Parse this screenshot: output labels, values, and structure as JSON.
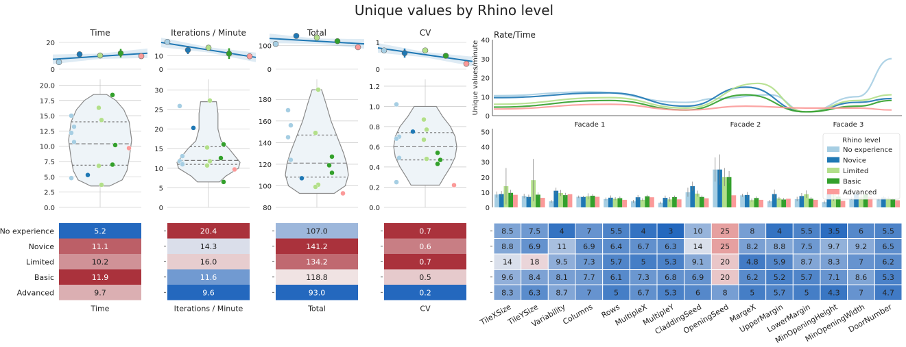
{
  "title": "Unique values by Rhino level",
  "levels": [
    "No experience",
    "Novice",
    "Limited",
    "Basic",
    "Advanced"
  ],
  "level_colors": [
    "#a6cee3",
    "#1f78b4",
    "#b2df8a",
    "#33a02c",
    "#fb9a99"
  ],
  "legend_title": "Rhino level",
  "chart_data": [
    {
      "type": "scatter",
      "panel": "trend",
      "title": "Time",
      "ylim": [
        0,
        22
      ],
      "yticks": [
        0,
        20
      ],
      "means": [
        5.2,
        11.1,
        10.2,
        11.9,
        9.7
      ],
      "errors": [
        null,
        1.6,
        1.8,
        3.2,
        null
      ]
    },
    {
      "type": "scatter",
      "panel": "trend",
      "title": "Iterations / Minute",
      "ylim": [
        0,
        22
      ],
      "yticks": [
        0,
        10
      ],
      "means": [
        20.4,
        14.3,
        16.0,
        11.6,
        9.6
      ],
      "errors": [
        null,
        3.0,
        2.2,
        4.0,
        null
      ]
    },
    {
      "type": "scatter",
      "panel": "trend",
      "title": "Total",
      "ylim": [
        0,
        125
      ],
      "yticks": [
        0,
        100
      ],
      "means": [
        107.0,
        141.2,
        134.2,
        118.8,
        93.0
      ],
      "errors": [
        null,
        9.0,
        13.0,
        3.0,
        null
      ]
    },
    {
      "type": "scatter",
      "panel": "trend",
      "title": "CV",
      "ylim": [
        0,
        1.1
      ],
      "yticks": [
        0,
        1
      ],
      "means": [
        0.7,
        0.6,
        0.7,
        0.5,
        0.2
      ],
      "errors": [
        null,
        0.17,
        0.07,
        0.03,
        null
      ]
    },
    {
      "type": "scatter",
      "panel": "violin",
      "ylim": [
        0,
        20.5
      ],
      "yticks": [
        "0.0",
        "2.5",
        "5.0",
        "7.5",
        "10.0",
        "12.5",
        "15.0",
        "17.5",
        "20.0"
      ],
      "quartiles": [
        6.9,
        10.4,
        14.0
      ],
      "profile": [
        [
          3.5,
          0.3
        ],
        [
          4.5,
          0.7
        ],
        [
          6,
          0.85
        ],
        [
          8,
          0.92
        ],
        [
          11,
          1.0
        ],
        [
          14,
          0.92
        ],
        [
          16,
          0.75
        ],
        [
          17.5,
          0.5
        ],
        [
          18.5,
          0.2
        ]
      ],
      "points": [
        [
          0,
          15.0
        ],
        [
          0,
          13.2
        ],
        [
          0,
          12.2
        ],
        [
          0,
          10.7
        ],
        [
          0,
          4.8
        ],
        [
          1,
          5.3
        ],
        [
          2,
          16.3
        ],
        [
          2,
          14.3
        ],
        [
          2,
          6.8
        ],
        [
          2,
          3.7
        ],
        [
          3,
          18.4
        ],
        [
          3,
          10.2
        ],
        [
          3,
          7.0
        ],
        [
          4,
          9.7
        ]
      ]
    },
    {
      "type": "scatter",
      "panel": "violin",
      "ylim": [
        0,
        32
      ],
      "yticks": [
        "0",
        "5",
        "10",
        "15",
        "20",
        "25",
        "30"
      ],
      "quartiles": [
        11.0,
        12.0,
        15.5
      ],
      "profile": [
        [
          6.5,
          0.35
        ],
        [
          8,
          0.55
        ],
        [
          10,
          0.95
        ],
        [
          11.5,
          1.0
        ],
        [
          13,
          0.85
        ],
        [
          15,
          0.65
        ],
        [
          17,
          0.4
        ],
        [
          20,
          0.3
        ],
        [
          24,
          0.3
        ],
        [
          27,
          0.25
        ]
      ],
      "points": [
        [
          0,
          25.9
        ],
        [
          0,
          13.1
        ],
        [
          0,
          11.8
        ],
        [
          0,
          11.2
        ],
        [
          1,
          20.3
        ],
        [
          2,
          27.3
        ],
        [
          2,
          15.3
        ],
        [
          2,
          11.8
        ],
        [
          2,
          10.7
        ],
        [
          3,
          16.1
        ],
        [
          3,
          12.6
        ],
        [
          3,
          6.5
        ],
        [
          4,
          9.7
        ],
        [
          0,
          11.0
        ]
      ]
    },
    {
      "type": "scatter",
      "panel": "violin",
      "ylim": [
        80,
        196
      ],
      "yticks": [
        "80",
        "100",
        "120",
        "140",
        "160",
        "180"
      ],
      "quartiles": [
        108.0,
        121.0,
        147.0
      ],
      "profile": [
        [
          93,
          0.55
        ],
        [
          100,
          0.9
        ],
        [
          110,
          1.0
        ],
        [
          120,
          0.95
        ],
        [
          130,
          0.85
        ],
        [
          145,
          0.65
        ],
        [
          160,
          0.45
        ],
        [
          175,
          0.3
        ],
        [
          189,
          0.15
        ]
      ],
      "points": [
        [
          0,
          170.0
        ],
        [
          0,
          156.0
        ],
        [
          0,
          145.0
        ],
        [
          0,
          124.0
        ],
        [
          1,
          107.0
        ],
        [
          2,
          189.0
        ],
        [
          2,
          149.0
        ],
        [
          2,
          101.0
        ],
        [
          2,
          99.0
        ],
        [
          3,
          127.0
        ],
        [
          3,
          119.0
        ],
        [
          3,
          112.0
        ],
        [
          4,
          93.0
        ]
      ]
    },
    {
      "type": "scatter",
      "panel": "violin",
      "ylim": [
        0,
        1.24
      ],
      "yticks": [
        "0.0",
        "0.2",
        "0.4",
        "0.6",
        "0.8",
        "1.0",
        "1.2"
      ],
      "quartiles": [
        0.47,
        0.6,
        0.74
      ],
      "profile": [
        [
          0.22,
          0.45
        ],
        [
          0.3,
          0.6
        ],
        [
          0.4,
          0.8
        ],
        [
          0.5,
          0.95
        ],
        [
          0.6,
          1.0
        ],
        [
          0.7,
          0.95
        ],
        [
          0.8,
          0.8
        ],
        [
          0.9,
          0.55
        ],
        [
          1.0,
          0.35
        ]
      ],
      "points": [
        [
          0,
          1.02
        ],
        [
          0,
          0.7
        ],
        [
          0,
          0.68
        ],
        [
          0,
          0.49
        ],
        [
          0,
          0.25
        ],
        [
          1,
          0.75
        ],
        [
          2,
          0.87
        ],
        [
          2,
          0.77
        ],
        [
          2,
          0.67
        ],
        [
          2,
          0.48
        ],
        [
          3,
          0.54
        ],
        [
          3,
          0.47
        ],
        [
          3,
          0.43
        ],
        [
          4,
          0.22
        ]
      ]
    },
    {
      "type": "heatmap",
      "panel": "single",
      "xlabel": "Time",
      "cells": [
        "5.2",
        "11.1",
        "10.2",
        "11.9",
        "9.7"
      ],
      "values": [
        5.2,
        11.1,
        10.2,
        11.9,
        9.7
      ],
      "range": [
        5.2,
        11.9
      ]
    },
    {
      "type": "heatmap",
      "panel": "single",
      "xlabel": "Iterations / Minute",
      "cells": [
        "20.4",
        "14.3",
        "16.0",
        "11.6",
        "9.6"
      ],
      "values": [
        20.4,
        14.3,
        16.0,
        11.6,
        9.6
      ],
      "range": [
        9.6,
        20.4
      ]
    },
    {
      "type": "heatmap",
      "panel": "single",
      "xlabel": "Total",
      "cells": [
        "107.0",
        "141.2",
        "134.2",
        "118.8",
        "93.0"
      ],
      "values": [
        107.0,
        141.2,
        134.2,
        118.8,
        93.0
      ],
      "range": [
        93.0,
        141.2
      ]
    },
    {
      "type": "heatmap",
      "panel": "single",
      "xlabel": "CV",
      "cells": [
        "0.7",
        "0.6",
        "0.7",
        "0.5",
        "0.2"
      ],
      "values": [
        0.7,
        0.6,
        0.7,
        0.5,
        0.2
      ],
      "range": [
        0.2,
        0.7
      ]
    },
    {
      "type": "line",
      "panel": "rate",
      "title": "Rate/Time",
      "ylabel": "Unique values/minute",
      "ylim": [
        0,
        40
      ],
      "yticks": [
        "0",
        "10",
        "20",
        "30",
        "40"
      ],
      "x": [
        "Facade 1",
        "Facade 2",
        "Facade 3"
      ],
      "series": [
        {
          "name": "No experience",
          "points": [
            [
              0,
              10.5
            ],
            [
              0.5,
              12.5
            ],
            [
              1,
              7
            ],
            [
              1.25,
              9
            ],
            [
              1.7,
              11
            ],
            [
              2,
              2
            ],
            [
              2.3,
              10
            ],
            [
              2.5,
              30
            ]
          ]
        },
        {
          "name": "Novice",
          "points": [
            [
              0,
              9.5
            ],
            [
              0.6,
              12
            ],
            [
              1,
              5
            ],
            [
              1.5,
              15
            ],
            [
              2,
              2
            ],
            [
              2.3,
              7
            ],
            [
              2.5,
              9
            ]
          ]
        },
        {
          "name": "Limited",
          "points": [
            [
              0,
              6
            ],
            [
              0.6,
              9.5
            ],
            [
              1,
              4
            ],
            [
              1.6,
              17
            ],
            [
              2,
              2
            ],
            [
              2.3,
              8
            ],
            [
              2.5,
              11
            ]
          ]
        },
        {
          "name": "Basic",
          "points": [
            [
              0,
              4.5
            ],
            [
              0.6,
              8
            ],
            [
              1,
              3
            ],
            [
              1.5,
              11
            ],
            [
              2,
              2
            ],
            [
              2.3,
              5
            ],
            [
              2.5,
              8
            ]
          ]
        },
        {
          "name": "Advanced",
          "points": [
            [
              0,
              3.5
            ],
            [
              0.6,
              6
            ],
            [
              1,
              3
            ],
            [
              1.5,
              5
            ],
            [
              2,
              4
            ],
            [
              2.3,
              4
            ],
            [
              2.5,
              3
            ]
          ]
        }
      ]
    },
    {
      "type": "bar",
      "panel": "params",
      "ylim": [
        0,
        52
      ],
      "yticks": [
        "0",
        "10",
        "20",
        "30",
        "40",
        "50"
      ],
      "categories": [
        "TileXSize",
        "TileYSize",
        "Variability",
        "Columns",
        "Rows",
        "MultipleX",
        "MultipleY",
        "CladdingSeed",
        "OpeningSeed",
        "MargeX",
        "UpperMargin",
        "LowerMargin",
        "MinOpeningHeight",
        "MinOpeningWidth",
        "DoorNumber"
      ],
      "series": [
        {
          "name": "No experience",
          "values": [
            8.5,
            7.5,
            4,
            7,
            5.5,
            4,
            3,
            10,
            25,
            8,
            4,
            5.5,
            3.5,
            6,
            5.5
          ],
          "err": [
            2,
            1.5,
            1,
            0.8,
            1,
            1,
            0.8,
            3,
            8,
            1,
            1,
            1.5,
            1,
            1,
            1
          ]
        },
        {
          "name": "Novice",
          "values": [
            8.8,
            6.9,
            11,
            6.9,
            6.4,
            6.7,
            6.3,
            14,
            25,
            8.2,
            8.8,
            7.5,
            9.7,
            9.2,
            6.5
          ],
          "err": [
            2,
            1.5,
            2,
            0.8,
            1.5,
            1.5,
            1.5,
            3,
            10,
            2,
            3,
            2,
            3,
            2,
            1
          ]
        },
        {
          "name": "Limited",
          "values": [
            14,
            18,
            9.5,
            7.3,
            5.7,
            5,
            5.3,
            9.1,
            20,
            4.8,
            5.9,
            8.7,
            8.3,
            7,
            6.2
          ],
          "err": [
            12,
            14,
            2,
            2,
            1,
            1,
            1.5,
            2,
            6,
            1,
            1,
            2.5,
            4,
            2,
            1
          ]
        },
        {
          "name": "Basic",
          "values": [
            9.6,
            8.4,
            8.1,
            7.7,
            6.1,
            7.3,
            6.8,
            6.9,
            20,
            6.2,
            5.2,
            5.7,
            7.1,
            8.6,
            5.3
          ],
          "err": [
            2,
            1.5,
            1.5,
            1,
            1,
            1,
            1,
            1,
            4,
            1,
            1,
            1,
            1.5,
            1.5,
            1
          ]
        },
        {
          "name": "Advanced",
          "values": [
            8.3,
            6.3,
            8.7,
            7,
            5,
            6.7,
            5.3,
            6,
            8,
            5,
            5.7,
            5,
            4.3,
            7,
            4.7
          ],
          "err": [
            0,
            0,
            0,
            0,
            0,
            0,
            0,
            0,
            0,
            0,
            0,
            0,
            0,
            0,
            0
          ]
        }
      ]
    },
    {
      "type": "heatmap",
      "panel": "grid",
      "xlabels": [
        "TileXSize",
        "TileYSize",
        "Variability",
        "Columns",
        "Rows",
        "MultipleX",
        "MultipleY",
        "CladdingSeed",
        "OpeningSeed",
        "MargeX",
        "UpperMargin",
        "LowerMargin",
        "MinOpeningHeight",
        "MinOpeningWidth",
        "DoorNumber"
      ],
      "cells": [
        [
          "8.5",
          "7.5",
          "4",
          "7",
          "5.5",
          "4",
          "3",
          "10",
          "25",
          "8",
          "4",
          "5.5",
          "3.5",
          "6",
          "5.5"
        ],
        [
          "8.8",
          "6.9",
          "11",
          "6.9",
          "6.4",
          "6.7",
          "6.3",
          "14",
          "25",
          "8.2",
          "8.8",
          "7.5",
          "9.7",
          "9.2",
          "6.5"
        ],
        [
          "14",
          "18",
          "9.5",
          "7.3",
          "5.7",
          "5",
          "5.3",
          "9.1",
          "20",
          "4.8",
          "5.9",
          "8.7",
          "8.3",
          "7",
          "6.2"
        ],
        [
          "9.6",
          "8.4",
          "8.1",
          "7.7",
          "6.1",
          "7.3",
          "6.8",
          "6.9",
          "20",
          "6.2",
          "5.2",
          "5.7",
          "7.1",
          "8.6",
          "5.3"
        ],
        [
          "8.3",
          "6.3",
          "8.7",
          "7",
          "5",
          "6.7",
          "5.3",
          "6",
          "8",
          "5",
          "5.7",
          "5",
          "4.3",
          "7",
          "4.7"
        ]
      ],
      "values": [
        [
          8.5,
          7.5,
          4,
          7,
          5.5,
          4,
          3,
          10,
          25,
          8,
          4,
          5.5,
          3.5,
          6,
          5.5
        ],
        [
          8.8,
          6.9,
          11,
          6.9,
          6.4,
          6.7,
          6.3,
          14,
          25,
          8.2,
          8.8,
          7.5,
          9.7,
          9.2,
          6.5
        ],
        [
          14,
          18,
          9.5,
          7.3,
          5.7,
          5,
          5.3,
          9.1,
          20,
          4.8,
          5.9,
          8.7,
          8.3,
          7,
          6.2
        ],
        [
          9.6,
          8.4,
          8.1,
          7.7,
          6.1,
          7.3,
          6.8,
          6.9,
          20,
          6.2,
          5.2,
          5.7,
          7.1,
          8.6,
          5.3
        ],
        [
          8.3,
          6.3,
          8.7,
          7,
          5,
          6.7,
          5.3,
          6,
          8,
          5,
          5.7,
          5,
          4.3,
          7,
          4.7
        ]
      ],
      "range": [
        3,
        25
      ]
    }
  ]
}
